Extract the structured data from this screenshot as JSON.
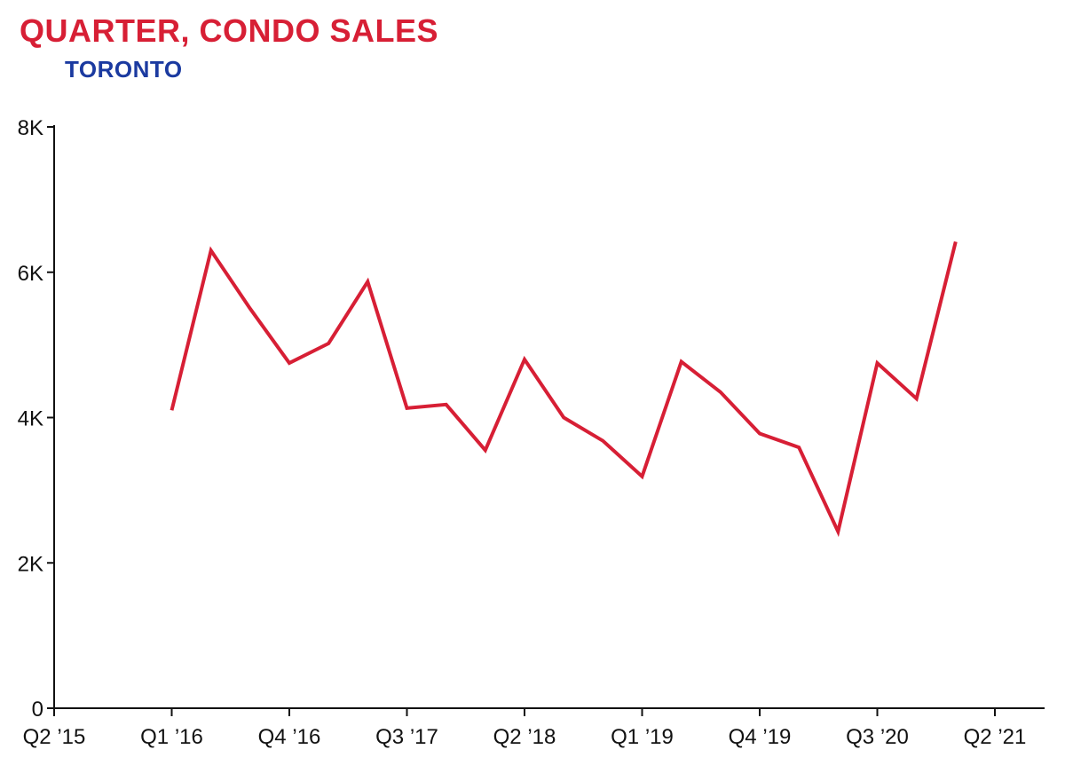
{
  "header": {
    "title": "QUARTER, CONDO SALES",
    "subtitle": "TORONTO"
  },
  "colors": {
    "title": "#d71f35",
    "subtitle": "#1b3aa0",
    "line": "#d71f35",
    "axis": "#111111"
  },
  "chart_data": {
    "type": "line",
    "title": "QUARTER, CONDO SALES",
    "subtitle": "TORONTO",
    "x_categories": [
      "Q2 '15",
      "Q3 '15",
      "Q4 '15",
      "Q1 '16",
      "Q2 '16",
      "Q3 '16",
      "Q4 '16",
      "Q1 '17",
      "Q2 '17",
      "Q3 '17",
      "Q4 '17",
      "Q1 '18",
      "Q2 '18",
      "Q3 '18",
      "Q4 '18",
      "Q1 '19",
      "Q2 '19",
      "Q3 '19",
      "Q4 '19",
      "Q1 '20",
      "Q2 '20",
      "Q3 '20",
      "Q4 '20",
      "Q1 '21",
      "Q2 '21"
    ],
    "x_tick_labels": [
      "Q2 ’15",
      "Q1 ’16",
      "Q4 ’16",
      "Q3 ’17",
      "Q2 ’18",
      "Q1 ’19",
      "Q4 ’19",
      "Q3 ’20",
      "Q2 ’21"
    ],
    "y_tick_labels": [
      "0",
      "2K",
      "4K",
      "6K",
      "8K"
    ],
    "y_ticks": [
      0,
      2000,
      4000,
      6000,
      8000
    ],
    "ylim": [
      0,
      8000
    ],
    "grid": false,
    "series": [
      {
        "x": [
          "Q1 '16",
          "Q2 '16",
          "Q3 '16",
          "Q4 '16",
          "Q1 '17",
          "Q2 '17",
          "Q3 '17",
          "Q4 '17",
          "Q1 '18",
          "Q2 '18",
          "Q3 '18",
          "Q4 '18",
          "Q1 '19",
          "Q2 '19",
          "Q3 '19",
          "Q4 '19",
          "Q1 '20",
          "Q2 '20",
          "Q3 '20",
          "Q4 '20",
          "Q1 '21"
        ],
        "values": [
          4100,
          6300,
          5500,
          4750,
          5020,
          5870,
          4130,
          4180,
          3550,
          4800,
          4000,
          3680,
          3190,
          4770,
          4350,
          3780,
          3590,
          2430,
          4750,
          4260,
          6420
        ]
      }
    ]
  }
}
